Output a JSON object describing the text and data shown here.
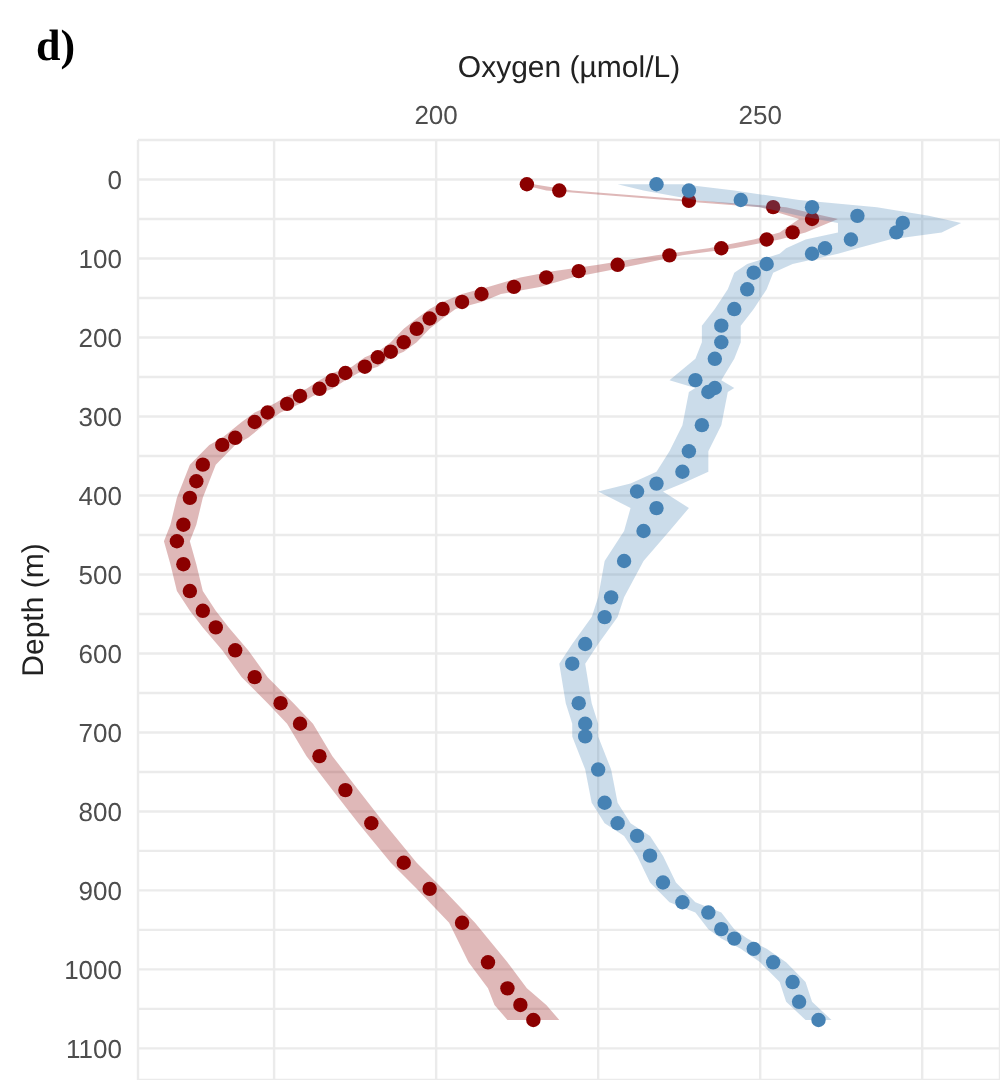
{
  "chart_data": {
    "type": "scatter",
    "title": "d)",
    "xlabel": "Oxygen (µmol/L)",
    "ylabel": "Depth (m)",
    "orientation": "horizontal",
    "xlim": [
      154,
      287
    ],
    "xticks": [
      {
        "value": 175,
        "label": null
      },
      200,
      {
        "value": 225,
        "label": null
      },
      250,
      {
        "value": 275,
        "label": null
      }
    ],
    "ylim": [
      1140,
      -50
    ],
    "yticks": [
      0,
      {
        "value": 50,
        "label": null
      },
      100,
      {
        "value": 150,
        "label": null
      },
      200,
      {
        "value": 250,
        "label": null
      },
      300,
      {
        "value": 350,
        "label": null
      },
      400,
      {
        "value": 450,
        "label": null
      },
      500,
      {
        "value": 550,
        "label": null
      },
      600,
      {
        "value": 650,
        "label": null
      },
      700,
      {
        "value": 750,
        "label": null
      },
      800,
      {
        "value": 850,
        "label": null
      },
      900,
      {
        "value": 950,
        "label": null
      },
      1000,
      {
        "value": 1050,
        "label": null
      },
      1100
    ],
    "grid": true,
    "legend": false,
    "marker": "circle",
    "series": [
      {
        "color": "#8b0000",
        "x": [
          6,
          14,
          27,
          35,
          50,
          67,
          76,
          87,
          96,
          108,
          116,
          124,
          136,
          145,
          155,
          164,
          176,
          189,
          206,
          218,
          225,
          237,
          245,
          254,
          265,
          274,
          284,
          295,
          307,
          327,
          336,
          361,
          382,
          403,
          437,
          458,
          487,
          521,
          546,
          567,
          596,
          630,
          663,
          689,
          730,
          773,
          815,
          865,
          898,
          941,
          991,
          1024,
          1045,
          1064
        ],
        "values": [
          214,
          219,
          239,
          252,
          258,
          255,
          251,
          244,
          236,
          228,
          222,
          217,
          212,
          207,
          204,
          201,
          199,
          197,
          195,
          193,
          191,
          189,
          186,
          184,
          182,
          179,
          177,
          174,
          172,
          169,
          167,
          164,
          163,
          162,
          161,
          160,
          161,
          162,
          164,
          166,
          169,
          172,
          176,
          179,
          182,
          186,
          190,
          195,
          199,
          204,
          208,
          211,
          213,
          215
        ],
        "lower": [
          213,
          217,
          237,
          250,
          256,
          253,
          249,
          242,
          234,
          225,
          218,
          213,
          208,
          204,
          201,
          199,
          197,
          195,
          193,
          191,
          189,
          187,
          184,
          182,
          180,
          177,
          175,
          172,
          170,
          167,
          165,
          162,
          161,
          160,
          159,
          158,
          159,
          160,
          162,
          164,
          167,
          170,
          174,
          177,
          180,
          184,
          188,
          193,
          197,
          202,
          205,
          208,
          209,
          211
        ],
        "upper": [
          215,
          221,
          241,
          254,
          262,
          257,
          253,
          246,
          238,
          231,
          226,
          221,
          216,
          210,
          207,
          203,
          201,
          199,
          197,
          195,
          193,
          191,
          188,
          186,
          184,
          181,
          179,
          176,
          174,
          171,
          169,
          166,
          165,
          164,
          163,
          162,
          163,
          164,
          166,
          168,
          171,
          174,
          178,
          181,
          184,
          188,
          192,
          197,
          201,
          206,
          211,
          214,
          217,
          219
        ]
      },
      {
        "color": "#4682b4",
        "x": [
          6,
          14,
          26,
          35,
          46,
          55,
          67,
          76,
          87,
          94,
          107,
          118,
          139,
          164,
          185,
          206,
          227,
          254,
          264,
          269,
          311,
          344,
          370,
          385,
          395,
          416,
          445,
          483,
          529,
          554,
          588,
          613,
          663,
          689,
          705,
          747,
          789,
          815,
          831,
          856,
          890,
          915,
          928,
          949,
          961,
          974,
          991,
          1016,
          1041,
          1064
        ],
        "values": [
          234,
          239,
          247,
          258,
          265,
          272,
          271,
          264,
          260,
          258,
          251,
          249,
          248,
          246,
          244,
          244,
          243,
          240,
          243,
          242,
          241,
          239,
          238,
          234,
          231,
          234,
          232,
          229,
          227,
          226,
          223,
          221,
          222,
          223,
          223,
          225,
          226,
          228,
          231,
          233,
          235,
          238,
          242,
          244,
          246,
          249,
          252,
          255,
          256,
          259
        ],
        "lower": [
          228,
          232,
          240,
          250,
          256,
          262,
          262,
          257,
          254,
          253,
          248,
          246,
          245,
          243,
          241,
          241,
          240,
          236,
          240,
          239,
          238,
          236,
          234,
          230,
          225,
          230,
          229,
          226,
          225,
          224,
          221,
          219,
          220,
          221,
          221,
          223,
          224,
          226,
          229,
          231,
          233,
          236,
          240,
          242,
          244,
          247,
          250,
          253,
          254,
          257
        ],
        "upper": [
          238,
          246,
          256,
          268,
          276,
          281,
          278,
          270,
          265,
          262,
          255,
          252,
          251,
          249,
          247,
          247,
          246,
          244,
          246,
          245,
          244,
          242,
          242,
          238,
          235,
          239,
          236,
          232,
          229,
          228,
          225,
          223,
          224,
          225,
          225,
          227,
          228,
          230,
          233,
          235,
          237,
          240,
          244,
          246,
          248,
          251,
          254,
          257,
          258,
          261
        ]
      }
    ]
  }
}
